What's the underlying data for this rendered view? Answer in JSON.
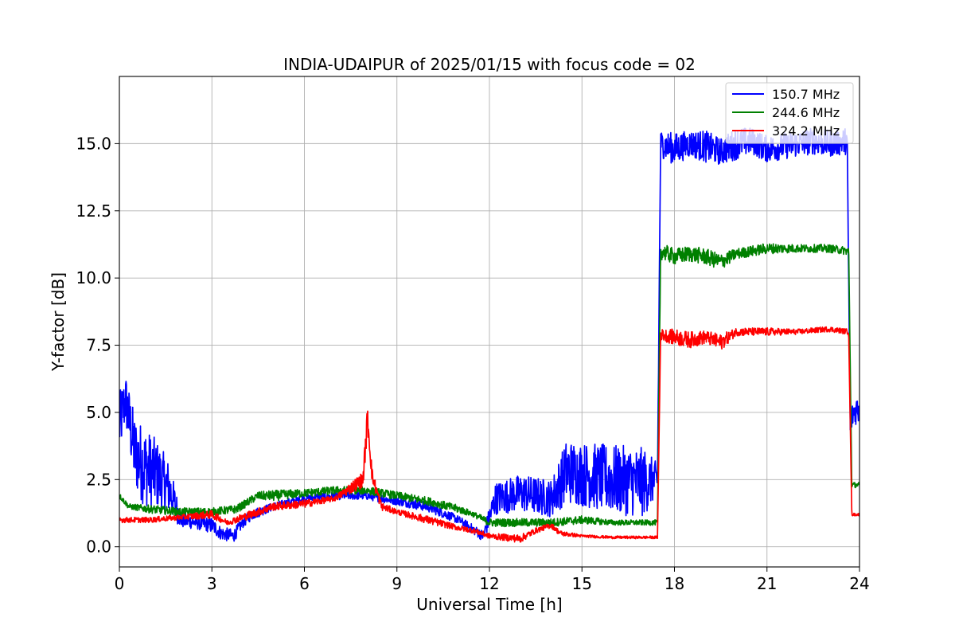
{
  "chart_data": {
    "type": "line",
    "title": "INDIA-UDAIPUR of 2025/01/15 with focus code = 02",
    "xlabel": "Universal Time [h]",
    "ylabel": "Y-factor [dB]",
    "xlim": [
      0,
      24
    ],
    "ylim": [
      -0.75,
      17.5
    ],
    "xticks": [
      0,
      3,
      6,
      9,
      12,
      15,
      18,
      21,
      24
    ],
    "xtick_labels": [
      "0",
      "3",
      "6",
      "9",
      "12",
      "15",
      "18",
      "21",
      "24"
    ],
    "yticks": [
      0.0,
      2.5,
      5.0,
      7.5,
      10.0,
      12.5,
      15.0
    ],
    "ytick_labels": [
      "0.0",
      "2.5",
      "5.0",
      "7.5",
      "10.0",
      "12.5",
      "15.0"
    ],
    "grid": true,
    "legend_position": "top-right",
    "series": [
      {
        "name": "150.7 MHz",
        "color": "#0000ff",
        "x": [
          0.0,
          0.2,
          0.5,
          0.8,
          1.2,
          1.6,
          2.0,
          2.5,
          3.0,
          3.3,
          3.7,
          4.0,
          4.3,
          5.0,
          6.0,
          7.0,
          8.0,
          9.0,
          10.0,
          11.0,
          11.8,
          12.2,
          13.0,
          14.0,
          14.5,
          15.0,
          16.0,
          17.0,
          17.45,
          17.55,
          18.0,
          18.5,
          19.0,
          19.5,
          20.0,
          20.5,
          21.0,
          21.5,
          22.0,
          22.5,
          23.0,
          23.6,
          23.7,
          23.8,
          24.0
        ],
        "y": [
          4.5,
          5.5,
          3.5,
          3.0,
          2.7,
          2.2,
          1.0,
          0.9,
          0.8,
          0.5,
          0.4,
          0.9,
          1.2,
          1.5,
          1.8,
          1.9,
          1.9,
          1.7,
          1.5,
          1.0,
          0.4,
          1.8,
          2.0,
          1.8,
          2.8,
          2.7,
          2.5,
          2.4,
          2.5,
          15.0,
          14.8,
          15.0,
          14.9,
          14.7,
          15.0,
          15.1,
          14.8,
          14.9,
          15.0,
          15.1,
          15.0,
          15.1,
          4.5,
          5.0,
          5.2
        ],
        "amplitude": [
          1.2,
          1.0,
          1.4,
          1.5,
          1.3,
          1.0,
          0.3,
          0.25,
          0.3,
          0.25,
          0.25,
          0.2,
          0.2,
          0.15,
          0.15,
          0.15,
          0.15,
          0.15,
          0.2,
          0.15,
          0.2,
          0.6,
          0.7,
          0.7,
          1.2,
          1.2,
          1.3,
          1.3,
          0.6,
          0.5,
          0.6,
          0.5,
          0.6,
          0.5,
          0.6,
          0.5,
          0.5,
          0.5,
          0.5,
          0.5,
          0.5,
          0.5,
          0.5,
          0.5,
          0.6
        ]
      },
      {
        "name": "244.6 MHz",
        "color": "#008000",
        "x": [
          0.0,
          0.3,
          1.0,
          2.0,
          3.0,
          3.8,
          4.5,
          5.0,
          6.0,
          7.0,
          8.0,
          9.0,
          10.0,
          11.0,
          11.5,
          12.0,
          13.0,
          14.0,
          15.0,
          16.0,
          17.0,
          17.45,
          17.55,
          18.0,
          18.5,
          19.0,
          19.5,
          20.0,
          21.0,
          22.0,
          23.0,
          23.65,
          23.75,
          24.0
        ],
        "y": [
          1.9,
          1.5,
          1.4,
          1.3,
          1.3,
          1.4,
          1.9,
          1.9,
          2.0,
          2.1,
          2.1,
          1.9,
          1.7,
          1.4,
          1.2,
          0.9,
          0.9,
          0.9,
          1.0,
          0.9,
          0.9,
          0.9,
          11.0,
          10.8,
          10.9,
          10.8,
          10.6,
          10.9,
          11.1,
          11.1,
          11.1,
          11.0,
          2.3,
          2.3
        ],
        "amplitude": [
          0.1,
          0.1,
          0.15,
          0.15,
          0.15,
          0.15,
          0.15,
          0.2,
          0.15,
          0.15,
          0.15,
          0.15,
          0.15,
          0.15,
          0.1,
          0.15,
          0.15,
          0.15,
          0.15,
          0.1,
          0.1,
          0.1,
          0.3,
          0.3,
          0.3,
          0.3,
          0.3,
          0.2,
          0.2,
          0.15,
          0.15,
          0.15,
          0.1,
          0.1
        ]
      },
      {
        "name": "324.2 MHz",
        "color": "#ff0000",
        "x": [
          0.0,
          1.0,
          2.0,
          3.0,
          3.5,
          4.0,
          5.0,
          6.0,
          7.0,
          7.9,
          8.05,
          8.2,
          8.5,
          9.0,
          10.0,
          11.0,
          11.5,
          12.0,
          13.0,
          13.5,
          14.0,
          14.3,
          15.0,
          16.0,
          17.0,
          17.45,
          17.55,
          18.0,
          18.5,
          19.0,
          19.5,
          20.0,
          21.0,
          22.0,
          23.0,
          23.65,
          23.75,
          24.0
        ],
        "y": [
          1.0,
          1.0,
          1.1,
          1.2,
          0.9,
          1.1,
          1.5,
          1.6,
          1.8,
          2.5,
          4.8,
          2.6,
          1.5,
          1.3,
          1.0,
          0.7,
          0.6,
          0.4,
          0.3,
          0.6,
          0.8,
          0.5,
          0.4,
          0.35,
          0.35,
          0.35,
          7.9,
          7.8,
          7.7,
          7.8,
          7.6,
          8.0,
          8.0,
          8.0,
          8.1,
          8.0,
          1.2,
          1.2
        ],
        "amplitude": [
          0.1,
          0.1,
          0.1,
          0.15,
          0.1,
          0.15,
          0.15,
          0.15,
          0.1,
          0.3,
          0.6,
          0.3,
          0.15,
          0.1,
          0.15,
          0.1,
          0.1,
          0.1,
          0.15,
          0.1,
          0.1,
          0.1,
          0.05,
          0.05,
          0.05,
          0.05,
          0.2,
          0.3,
          0.3,
          0.25,
          0.3,
          0.15,
          0.15,
          0.1,
          0.1,
          0.1,
          0.05,
          0.05
        ]
      }
    ]
  }
}
